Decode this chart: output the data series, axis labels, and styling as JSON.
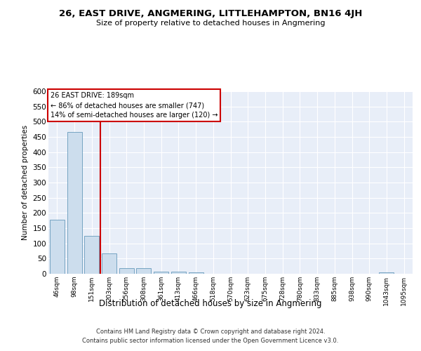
{
  "title": "26, EAST DRIVE, ANGMERING, LITTLEHAMPTON, BN16 4JH",
  "subtitle": "Size of property relative to detached houses in Angmering",
  "xlabel": "Distribution of detached houses by size in Angmering",
  "ylabel": "Number of detached properties",
  "categories": [
    "46sqm",
    "98sqm",
    "151sqm",
    "203sqm",
    "256sqm",
    "308sqm",
    "361sqm",
    "413sqm",
    "466sqm",
    "518sqm",
    "570sqm",
    "623sqm",
    "675sqm",
    "728sqm",
    "780sqm",
    "833sqm",
    "885sqm",
    "938sqm",
    "990sqm",
    "1043sqm",
    "1095sqm"
  ],
  "values": [
    178,
    467,
    125,
    68,
    18,
    18,
    8,
    6,
    4,
    0,
    0,
    0,
    0,
    0,
    0,
    0,
    0,
    0,
    0,
    5,
    0
  ],
  "bar_color": "#ccdded",
  "bar_edge_color": "#6699bb",
  "red_line_index": 2,
  "annotation_title": "26 EAST DRIVE: 189sqm",
  "annotation_line1": "← 86% of detached houses are smaller (747)",
  "annotation_line2": "14% of semi-detached houses are larger (120) →",
  "annotation_box_color": "#ffffff",
  "annotation_box_edge": "#cc0000",
  "red_line_color": "#cc0000",
  "footer1": "Contains HM Land Registry data © Crown copyright and database right 2024.",
  "footer2": "Contains public sector information licensed under the Open Government Licence v3.0.",
  "ylim": [
    0,
    600
  ],
  "yticks": [
    0,
    50,
    100,
    150,
    200,
    250,
    300,
    350,
    400,
    450,
    500,
    550,
    600
  ],
  "background_color": "#e8eef8",
  "grid_color": "#ffffff",
  "title_fontsize": 9.5,
  "subtitle_fontsize": 8,
  "ylabel_fontsize": 7.5,
  "xlabel_fontsize": 8.5,
  "ytick_fontsize": 7.5,
  "xtick_fontsize": 6.5
}
